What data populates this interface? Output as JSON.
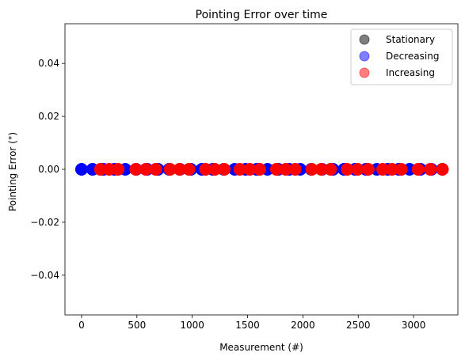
{
  "chart_data": {
    "type": "scatter",
    "title": "Pointing Error over time",
    "xlabel": "Measurement (#)",
    "ylabel": "Pointing Error (\")",
    "xlim": [
      -150,
      3400
    ],
    "ylim": [
      -0.055,
      0.055
    ],
    "x_ticks": [
      {
        "value": 0,
        "label": "0"
      },
      {
        "value": 500,
        "label": "500"
      },
      {
        "value": 1000,
        "label": "1000"
      },
      {
        "value": 1500,
        "label": "1500"
      },
      {
        "value": 2000,
        "label": "2000"
      },
      {
        "value": 2500,
        "label": "2500"
      },
      {
        "value": 3000,
        "label": "3000"
      }
    ],
    "y_ticks": [
      {
        "value": 0.04,
        "label": "0.04"
      },
      {
        "value": 0.02,
        "label": "0.02"
      },
      {
        "value": 0.0,
        "label": "0.00"
      },
      {
        "value": -0.02,
        "label": "−0.02"
      },
      {
        "value": -0.04,
        "label": "−0.04"
      }
    ],
    "grid": false,
    "legend_position": "top-right",
    "series": [
      {
        "name": "Stationary",
        "color": "#000000",
        "alpha": 0.5,
        "x_range": [],
        "y": 0
      },
      {
        "name": "Decreasing",
        "color": "#0000ff",
        "alpha": 0.5,
        "x_range": [
          [
            0,
            3260
          ]
        ],
        "y": 0
      },
      {
        "name": "Increasing",
        "color": "#ff0000",
        "alpha": 0.5,
        "x_range": [
          [
            170,
            330
          ],
          [
            490,
            670
          ],
          [
            800,
            970
          ],
          [
            1120,
            1290
          ],
          [
            1430,
            1610
          ],
          [
            1760,
            1930
          ],
          [
            2080,
            2250
          ],
          [
            2400,
            2590
          ],
          [
            2720,
            2890
          ],
          [
            3040,
            3260
          ]
        ],
        "y": 0
      }
    ]
  }
}
